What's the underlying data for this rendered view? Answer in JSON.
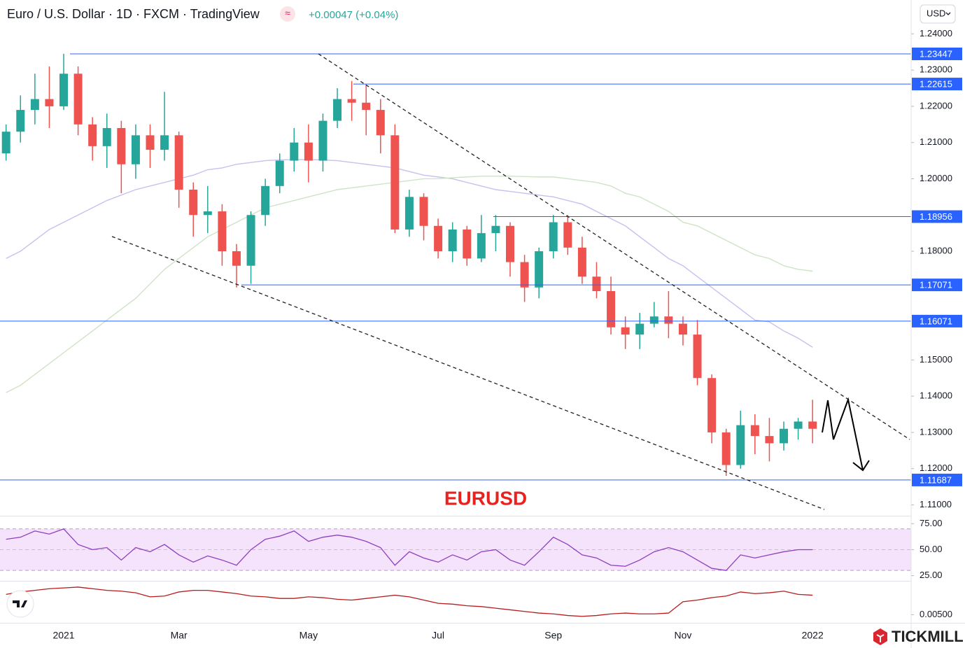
{
  "header": {
    "title": "Euro / U.S. Dollar · 1D · FXCM · TradingView",
    "icon": "≈",
    "change": "+0.00047 (+0.04%)",
    "currency": "USD"
  },
  "brand": "TICKMILL",
  "chart_data": [
    {
      "type": "candlestick",
      "annotation": "EURUSD",
      "categories": [
        null,
        null,
        null,
        null,
        "2021",
        null,
        null,
        null,
        null,
        null,
        null,
        null,
        "Mar",
        null,
        null,
        null,
        null,
        null,
        null,
        null,
        null,
        "May",
        null,
        null,
        null,
        null,
        null,
        null,
        null,
        null,
        "Jul",
        null,
        null,
        null,
        null,
        null,
        null,
        null,
        "Sep",
        null,
        null,
        null,
        null,
        null,
        null,
        null,
        null,
        "Nov",
        null,
        null,
        null,
        null,
        null,
        null,
        null,
        null,
        "2022"
      ],
      "open": [
        1.207,
        1.213,
        1.219,
        1.222,
        1.22,
        1.229,
        1.215,
        1.209,
        1.214,
        1.204,
        1.212,
        1.208,
        1.212,
        1.197,
        1.19,
        1.191,
        1.18,
        1.176,
        1.19,
        1.198,
        1.205,
        1.21,
        1.205,
        1.216,
        1.222,
        1.221,
        1.219,
        1.212,
        1.186,
        1.195,
        1.187,
        1.18,
        1.186,
        1.178,
        1.185,
        1.187,
        1.177,
        1.17,
        1.18,
        1.188,
        1.181,
        1.173,
        1.169,
        1.159,
        1.157,
        1.16,
        1.162,
        1.16,
        1.157,
        1.145,
        1.13,
        1.121,
        1.132,
        1.129,
        1.127,
        1.131,
        1.133
      ],
      "high": [
        1.215,
        1.223,
        1.229,
        1.231,
        1.2345,
        1.231,
        1.217,
        1.218,
        1.216,
        1.215,
        1.215,
        1.224,
        1.213,
        1.199,
        1.198,
        1.193,
        1.182,
        1.191,
        1.2,
        1.207,
        1.214,
        1.215,
        1.218,
        1.225,
        1.227,
        1.226,
        1.222,
        1.215,
        1.197,
        1.196,
        1.189,
        1.188,
        1.187,
        1.19,
        1.19,
        1.188,
        1.179,
        1.181,
        1.19,
        1.19,
        1.184,
        1.177,
        1.173,
        1.162,
        1.163,
        1.166,
        1.169,
        1.162,
        1.161,
        1.146,
        1.131,
        1.136,
        1.135,
        1.134,
        1.133,
        1.134,
        1.139
      ],
      "low": [
        1.205,
        1.21,
        1.215,
        1.214,
        1.219,
        1.212,
        1.205,
        1.203,
        1.196,
        1.2,
        1.203,
        1.205,
        1.192,
        1.184,
        1.185,
        1.176,
        1.17,
        1.171,
        1.187,
        1.196,
        1.202,
        1.199,
        1.202,
        1.214,
        1.216,
        1.212,
        1.207,
        1.185,
        1.184,
        1.183,
        1.178,
        1.177,
        1.176,
        1.177,
        1.18,
        1.173,
        1.166,
        1.167,
        1.178,
        1.179,
        1.171,
        1.167,
        1.157,
        1.153,
        1.153,
        1.159,
        1.156,
        1.154,
        1.143,
        1.127,
        1.118,
        1.12,
        1.124,
        1.122,
        1.125,
        1.128,
        1.127
      ],
      "close": [
        1.213,
        1.219,
        1.222,
        1.22,
        1.229,
        1.215,
        1.209,
        1.214,
        1.204,
        1.212,
        1.208,
        1.212,
        1.197,
        1.19,
        1.191,
        1.18,
        1.176,
        1.19,
        1.198,
        1.205,
        1.21,
        1.205,
        1.216,
        1.222,
        1.221,
        1.219,
        1.212,
        1.186,
        1.195,
        1.187,
        1.18,
        1.186,
        1.178,
        1.185,
        1.187,
        1.177,
        1.17,
        1.18,
        1.188,
        1.181,
        1.173,
        1.169,
        1.159,
        1.157,
        1.16,
        1.162,
        1.16,
        1.157,
        1.145,
        1.13,
        1.121,
        1.132,
        1.129,
        1.127,
        1.131,
        1.133,
        1.131
      ],
      "up_color": "#26a69a",
      "down_color": "#ef5350",
      "overlays": [
        {
          "color": "#c9bff0",
          "values": [
            1.178,
            1.18,
            1.183,
            1.186,
            1.188,
            1.19,
            1.192,
            1.194,
            1.1955,
            1.197,
            1.198,
            1.199,
            1.2,
            1.201,
            1.2025,
            1.203,
            1.204,
            1.2045,
            1.205,
            1.2052,
            1.2053,
            1.2053,
            1.2052,
            1.205,
            1.2045,
            1.204,
            1.2035,
            1.203,
            1.202,
            1.201,
            1.2005,
            1.2,
            1.199,
            1.198,
            1.197,
            1.1965,
            1.196,
            1.1955,
            1.195,
            1.194,
            1.193,
            1.191,
            1.189,
            1.187,
            1.184,
            1.181,
            1.178,
            1.176,
            1.173,
            1.17,
            1.167,
            1.164,
            1.161,
            1.1605,
            1.158,
            1.156,
            1.1535
          ]
        },
        {
          "color": "#cfe3c6",
          "values": [
            1.141,
            1.143,
            1.146,
            1.149,
            1.152,
            1.155,
            1.158,
            1.161,
            1.164,
            1.167,
            1.171,
            1.175,
            1.178,
            1.181,
            1.184,
            1.186,
            1.188,
            1.19,
            1.192,
            1.193,
            1.194,
            1.195,
            1.196,
            1.197,
            1.1975,
            1.198,
            1.1985,
            1.199,
            1.1995,
            1.2,
            1.2,
            1.2003,
            1.2005,
            1.2007,
            1.2007,
            1.2007,
            1.2006,
            1.2005,
            1.2005,
            1.2,
            1.1995,
            1.199,
            1.198,
            1.196,
            1.195,
            1.193,
            1.191,
            1.188,
            1.187,
            1.185,
            1.183,
            1.181,
            1.179,
            1.178,
            1.176,
            1.175,
            1.1745
          ]
        }
      ],
      "levels": [
        1.23447,
        1.22615,
        1.18956,
        1.17071,
        1.16071,
        1.11687
      ],
      "level_color": "#2962ff",
      "ylim": [
        1.107,
        1.242
      ],
      "yticks": [
        {
          "value": 1.24,
          "label": "1.24000"
        },
        {
          "value": 1.23,
          "label": "1.23000"
        },
        {
          "value": 1.22,
          "label": "1.22000"
        },
        {
          "value": 1.21,
          "label": "1.21000"
        },
        {
          "value": 1.2,
          "label": "1.20000"
        },
        {
          "value": 1.18,
          "label": "1.18000"
        },
        {
          "value": 1.15,
          "label": "1.15000"
        },
        {
          "value": 1.14,
          "label": "1.14000"
        },
        {
          "value": 1.13,
          "label": "1.13000"
        },
        {
          "value": 1.12,
          "label": "1.12000"
        },
        {
          "value": 1.11,
          "label": "1.11000"
        }
      ]
    },
    {
      "type": "line",
      "color": "#8e3fbf",
      "band": [
        30,
        70
      ],
      "band_color": "#f4e3fb",
      "values": [
        60,
        62,
        68,
        65,
        70,
        55,
        50,
        52,
        40,
        52,
        48,
        55,
        45,
        38,
        44,
        40,
        35,
        50,
        60,
        63,
        68,
        58,
        62,
        64,
        62,
        58,
        52,
        35,
        48,
        42,
        38,
        45,
        40,
        48,
        50,
        40,
        35,
        48,
        62,
        55,
        45,
        42,
        35,
        34,
        40,
        48,
        52,
        48,
        40,
        32,
        30,
        45,
        42,
        45,
        48,
        50,
        50
      ],
      "ylim": [
        20,
        82
      ],
      "yticks": [
        {
          "value": 75,
          "label": "75.00"
        },
        {
          "value": 50,
          "label": "50.00"
        },
        {
          "value": 25,
          "label": "25.00"
        }
      ]
    },
    {
      "type": "line",
      "color": "#b71c1c",
      "values": [
        0.0075,
        0.0078,
        0.008,
        0.0082,
        0.0083,
        0.0084,
        0.0082,
        0.008,
        0.0079,
        0.0077,
        0.0072,
        0.0073,
        0.0078,
        0.008,
        0.008,
        0.0078,
        0.0076,
        0.0073,
        0.0072,
        0.007,
        0.007,
        0.0072,
        0.0071,
        0.0069,
        0.0068,
        0.007,
        0.0072,
        0.0074,
        0.0072,
        0.0068,
        0.0064,
        0.0063,
        0.0061,
        0.006,
        0.0058,
        0.0056,
        0.0054,
        0.0052,
        0.0051,
        0.0049,
        0.0048,
        0.0049,
        0.0051,
        0.0052,
        0.0051,
        0.0051,
        0.0052,
        0.0066,
        0.0068,
        0.0071,
        0.0073,
        0.0078,
        0.0076,
        0.0077,
        0.0079,
        0.0075,
        0.0074
      ],
      "ylim": [
        0.004,
        0.009
      ],
      "yticks": [
        {
          "value": 0.005,
          "label": "0.00500"
        }
      ]
    }
  ]
}
